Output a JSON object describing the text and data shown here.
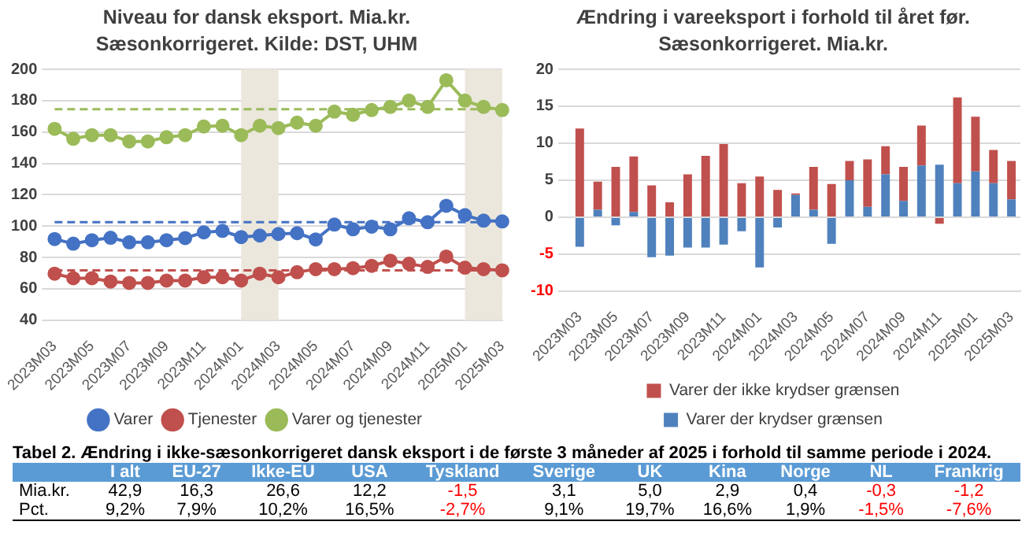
{
  "chart_data": [
    {
      "type": "line",
      "title": "Niveau for dansk eksport. Mia.kr.",
      "subtitle": "Sæsonkorrigeret. Kilde: DST, UHM",
      "categories": [
        "2023M03",
        null,
        "2023M05",
        null,
        "2023M07",
        null,
        "2023M09",
        null,
        "2023M11",
        null,
        "2024M01",
        null,
        "2024M03",
        null,
        "2024M05",
        null,
        "2024M07",
        null,
        "2024M09",
        null,
        "2024M11",
        null,
        "2025M01",
        null,
        "2025M03"
      ],
      "series": [
        {
          "name": "Varer",
          "color": "#4472c4",
          "values": [
            91.8,
            88.8,
            91,
            92.6,
            89.7,
            89.7,
            91,
            92.4,
            96,
            97,
            93,
            94,
            95,
            95.5,
            91.5,
            101,
            98,
            99.7,
            98,
            105,
            102.5,
            113,
            107,
            103.5,
            103
          ]
        },
        {
          "name": "Tjenester",
          "color": "#c0504d",
          "values": [
            69.7,
            66.8,
            66.8,
            64.7,
            63.8,
            63.8,
            65.3,
            65.3,
            67.4,
            67.4,
            65.3,
            69.7,
            67.4,
            70.6,
            72.6,
            72.6,
            73.2,
            74.7,
            78,
            76,
            74,
            80.6,
            73.5,
            72.6,
            71.8
          ]
        },
        {
          "name": "Varer og tjenester",
          "color": "#9bbb59",
          "values": [
            162,
            155.7,
            158,
            158,
            154,
            154,
            156.7,
            158,
            163.5,
            164,
            158,
            164,
            162.5,
            166,
            164,
            173,
            171,
            174,
            176,
            180,
            176,
            193,
            180,
            176,
            174
          ]
        }
      ],
      "ylim": [
        40,
        200
      ],
      "yticks": [
        40,
        60,
        80,
        100,
        120,
        140,
        160,
        180,
        200
      ],
      "grid": "y",
      "legend": "bottom",
      "marker": "circle",
      "line_style": "solid",
      "ref_lines": [
        {
          "axis": "y",
          "value": 102.5,
          "color": "#4472c4",
          "line_style": "dashed"
        },
        {
          "axis": "y",
          "value": 71.8,
          "color": "#c0504d",
          "line_style": "dashed"
        },
        {
          "axis": "y",
          "value": 174.5,
          "color": "#9bbb59",
          "line_style": "dashed"
        }
      ],
      "bands": [
        {
          "axis": "x",
          "from": "2024M01",
          "to": "2024M03",
          "color": "#ebe7dc"
        },
        {
          "axis": "x",
          "from": "2025M01",
          "to": "2025M03",
          "color": "#ebe7dc"
        }
      ]
    },
    {
      "type": "bar",
      "title": "Ændring i vareeksport i forhold til året før.",
      "subtitle": "Sæsonkorrigeret. Mia.kr.",
      "categories": [
        "2023M03",
        null,
        "2023M05",
        null,
        "2023M07",
        null,
        "2023M09",
        null,
        "2023M11",
        null,
        "2024M01",
        null,
        "2024M03",
        null,
        "2024M05",
        null,
        "2024M07",
        null,
        "2024M09",
        null,
        "2024M11",
        null,
        "2025M01",
        null,
        "2025M03"
      ],
      "stacked": true,
      "series": [
        {
          "name": "Varer der krydser grænsen",
          "color": "#4f81bd",
          "values": [
            -4,
            1,
            -1.1,
            0.7,
            -5.4,
            -5.2,
            -4.1,
            -4.1,
            -3.7,
            -1.9,
            -6.8,
            -1.4,
            3,
            1,
            -3.6,
            5,
            1.4,
            5.8,
            2.2,
            7,
            7.1,
            4.6,
            6.2,
            4.6,
            2.4
          ]
        },
        {
          "name": "Varer der ikke krydser grænsen",
          "color": "#c0504d",
          "values": [
            12,
            3.8,
            6.8,
            7.5,
            4.3,
            2,
            5.8,
            8.3,
            9.9,
            4.6,
            5.5,
            3.7,
            0.2,
            5.8,
            4.5,
            2.6,
            6.4,
            3.8,
            4.6,
            5.4,
            -0.9,
            11.6,
            7.4,
            4.5,
            5.2
          ]
        }
      ],
      "ylim": [
        -10,
        20
      ],
      "yticks": [
        -10,
        -5,
        0,
        5,
        10,
        15,
        20
      ],
      "grid": "y",
      "legend": "bottom"
    },
    {
      "type": "other",
      "title": "Tabel 2. Ændring i ikke-sæsonkorrigeret dansk eksport i de første 3 måneder af 2025 i forhold til samme periode i 2024.",
      "categories": [
        "I alt",
        "EU-27",
        "Ikke-EU",
        "USA",
        "Tyskland",
        "Sverige",
        "UK",
        "Kina",
        "Norge",
        "NL",
        "Frankrig"
      ],
      "series": [
        {
          "name": "Mia.kr.",
          "values": [
            42.9,
            16.3,
            26.6,
            12.2,
            -1.5,
            3.1,
            5.0,
            2.9,
            0.4,
            -0.3,
            -1.2
          ],
          "value_labels": [
            "42,9",
            "16,3",
            "26,6",
            "12,2",
            "-1,5",
            "3,1",
            "5,0",
            "2,9",
            "0,4",
            "-0,3",
            "-1,2"
          ]
        },
        {
          "name": "Pct.",
          "values": [
            9.2,
            7.9,
            10.2,
            16.5,
            -2.7,
            9.1,
            19.7,
            16.6,
            1.9,
            -1.5,
            -7.6
          ],
          "value_labels": [
            "9,2%",
            "7,9%",
            "10,2%",
            "16,5%",
            "-2,7%",
            "9,1%",
            "19,7%",
            "16,6%",
            "1,9%",
            "-1,5%",
            "-7,6%"
          ]
        }
      ]
    }
  ]
}
